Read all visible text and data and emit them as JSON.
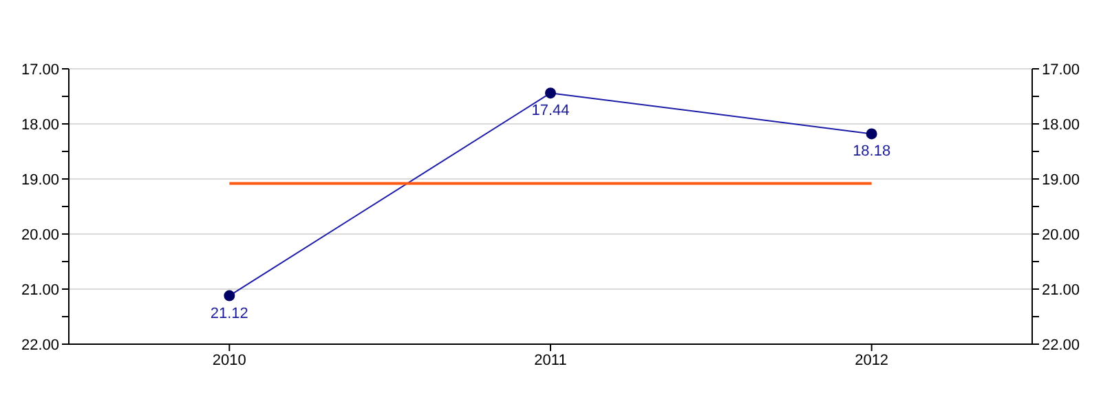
{
  "chart_data": {
    "type": "line",
    "categories": [
      "2010",
      "2011",
      "2012"
    ],
    "series": [
      {
        "color": "#1c1ca8",
        "values": [
          21.12,
          17.44,
          18.18
        ],
        "value_labels": [
          "21.12",
          "17.44",
          "18.18"
        ],
        "marker": "circle"
      },
      {
        "color": "#ff5a14",
        "values": [
          19.08,
          19.08,
          19.08
        ],
        "marker": "none"
      }
    ],
    "ylim": [
      22,
      17
    ],
    "yticks": [
      {
        "value": 17,
        "label": "17.00"
      },
      {
        "value": 17.5,
        "label": null
      },
      {
        "value": 18,
        "label": "18.00"
      },
      {
        "value": 18.5,
        "label": null
      },
      {
        "value": 19,
        "label": "19.00"
      },
      {
        "value": 19.5,
        "label": null
      },
      {
        "value": 20,
        "label": "20.00"
      },
      {
        "value": 20.5,
        "label": null
      },
      {
        "value": 21,
        "label": "21.00"
      },
      {
        "value": 21.5,
        "label": null
      },
      {
        "value": 22,
        "label": "22.00"
      }
    ],
    "y2lim": [
      22,
      17
    ],
    "y2ticks": [
      {
        "value": 17,
        "label": "17.00"
      },
      {
        "value": 17.5,
        "label": null
      },
      {
        "value": 18,
        "label": "18.00"
      },
      {
        "value": 18.5,
        "label": null
      },
      {
        "value": 19,
        "label": "19.00"
      },
      {
        "value": 19.5,
        "label": null
      },
      {
        "value": 20,
        "label": "20.00"
      },
      {
        "value": 20.5,
        "label": null
      },
      {
        "value": 21,
        "label": "21.00"
      },
      {
        "value": 21.5,
        "label": null
      },
      {
        "value": 22,
        "label": "22.00"
      }
    ],
    "grid": "y"
  }
}
